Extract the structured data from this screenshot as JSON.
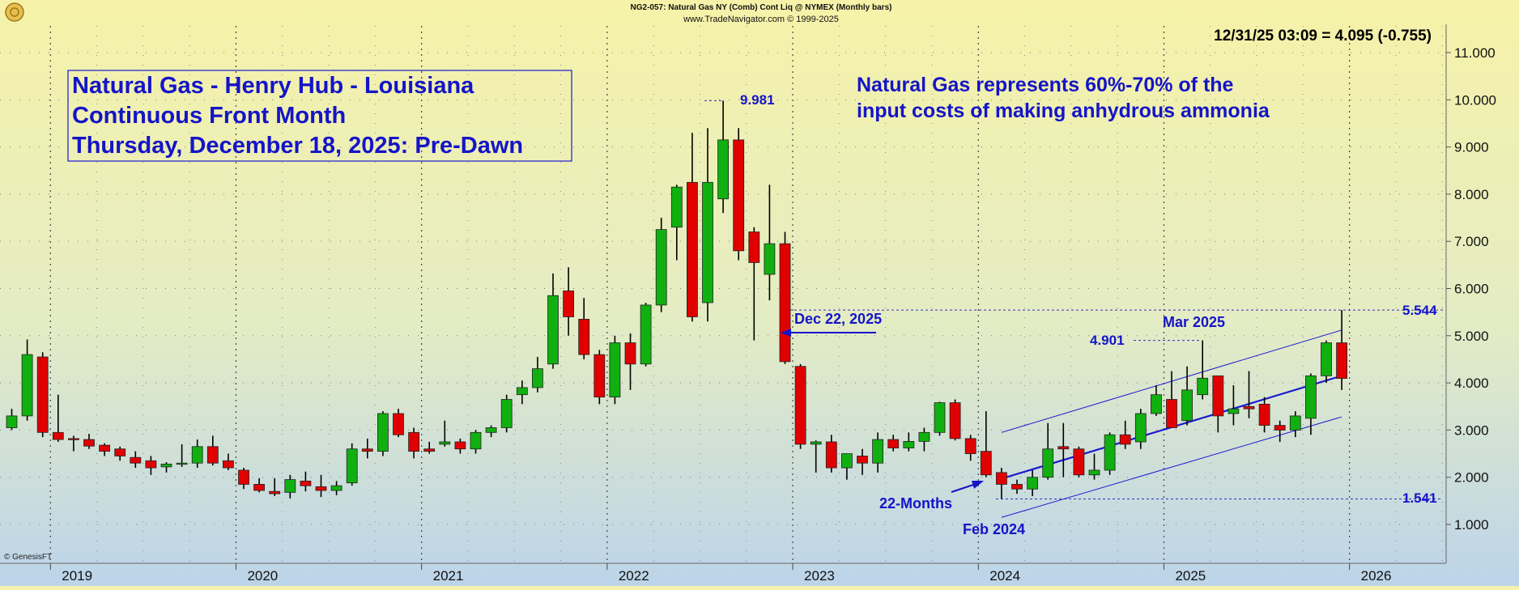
{
  "header": {
    "line1": "NG2-057:  Natural Gas NY (Comb) Cont Liq @ NYMEX  (Monthly bars)",
    "line2": "www.TradeNavigator.com © 1999-2025"
  },
  "quote": "12/31/25 03:09 = 4.095 (-0.755)",
  "title_box": {
    "line1": "Natural Gas - Henry Hub - Louisiana",
    "line2": "Continuous Front Month",
    "line3": "Thursday, December 18, 2025: Pre-Dawn"
  },
  "note": {
    "line1": "Natural Gas represents 60%-70% of the",
    "line2": "input costs of making anhydrous ammonia"
  },
  "annotations": {
    "high_label": "9.981",
    "dec22": "Dec 22, 2025",
    "mar2025": "Mar 2025",
    "val_4901": "4.901",
    "val_5544": "5.544",
    "val_1541": "1.541",
    "months22": "22-Months",
    "feb2024": "Feb 2024"
  },
  "watermark": "© GenesisFT",
  "colors": {
    "up": "#10b010",
    "down": "#e00000",
    "annotation": "#1414c8",
    "bg_top": "#f6f2a8",
    "bg_bottom": "#bcd4ea"
  },
  "chart_data": {
    "type": "candlestick",
    "title": "Natural Gas NY (Comb) Cont Liq @ NYMEX (Monthly bars)",
    "ylim": [
      0.5,
      11.5
    ],
    "y_ticks": [
      "1.000",
      "2.000",
      "3.000",
      "4.000",
      "5.000",
      "6.000",
      "7.000",
      "8.000",
      "9.000",
      "10.000",
      "11.000"
    ],
    "x_labels": [
      "2019",
      "2020",
      "2021",
      "2022",
      "2023",
      "2024",
      "2025",
      "2026"
    ],
    "start": "2018-10",
    "bars": [
      {
        "o": 3.05,
        "h": 3.45,
        "l": 3.0,
        "c": 3.3
      },
      {
        "o": 3.3,
        "h": 4.92,
        "l": 3.2,
        "c": 4.6
      },
      {
        "o": 4.55,
        "h": 4.65,
        "l": 2.85,
        "c": 2.95
      },
      {
        "o": 2.95,
        "h": 3.75,
        "l": 2.75,
        "c": 2.8
      },
      {
        "o": 2.82,
        "h": 2.88,
        "l": 2.55,
        "c": 2.8
      },
      {
        "o": 2.8,
        "h": 2.92,
        "l": 2.6,
        "c": 2.66
      },
      {
        "o": 2.68,
        "h": 2.72,
        "l": 2.45,
        "c": 2.55
      },
      {
        "o": 2.6,
        "h": 2.65,
        "l": 2.35,
        "c": 2.45
      },
      {
        "o": 2.42,
        "h": 2.55,
        "l": 2.2,
        "c": 2.3
      },
      {
        "o": 2.35,
        "h": 2.45,
        "l": 2.05,
        "c": 2.2
      },
      {
        "o": 2.22,
        "h": 2.32,
        "l": 2.1,
        "c": 2.28
      },
      {
        "o": 2.28,
        "h": 2.7,
        "l": 2.22,
        "c": 2.3
      },
      {
        "o": 2.3,
        "h": 2.8,
        "l": 2.2,
        "c": 2.65
      },
      {
        "o": 2.65,
        "h": 2.88,
        "l": 2.25,
        "c": 2.3
      },
      {
        "o": 2.35,
        "h": 2.5,
        "l": 2.15,
        "c": 2.2
      },
      {
        "o": 2.15,
        "h": 2.2,
        "l": 1.75,
        "c": 1.85
      },
      {
        "o": 1.85,
        "h": 1.98,
        "l": 1.68,
        "c": 1.72
      },
      {
        "o": 1.7,
        "h": 1.98,
        "l": 1.6,
        "c": 1.65
      },
      {
        "o": 1.68,
        "h": 2.05,
        "l": 1.55,
        "c": 1.95
      },
      {
        "o": 1.92,
        "h": 2.12,
        "l": 1.7,
        "c": 1.82
      },
      {
        "o": 1.8,
        "h": 2.05,
        "l": 1.58,
        "c": 1.72
      },
      {
        "o": 1.72,
        "h": 1.92,
        "l": 1.62,
        "c": 1.82
      },
      {
        "o": 1.88,
        "h": 2.72,
        "l": 1.82,
        "c": 2.6
      },
      {
        "o": 2.6,
        "h": 2.82,
        "l": 2.4,
        "c": 2.55
      },
      {
        "o": 2.55,
        "h": 3.4,
        "l": 2.45,
        "c": 3.35
      },
      {
        "o": 3.35,
        "h": 3.45,
        "l": 2.85,
        "c": 2.9
      },
      {
        "o": 2.95,
        "h": 3.05,
        "l": 2.4,
        "c": 2.55
      },
      {
        "o": 2.6,
        "h": 2.75,
        "l": 2.5,
        "c": 2.55
      },
      {
        "o": 2.7,
        "h": 3.2,
        "l": 2.65,
        "c": 2.75
      },
      {
        "o": 2.75,
        "h": 2.82,
        "l": 2.5,
        "c": 2.6
      },
      {
        "o": 2.6,
        "h": 3.0,
        "l": 2.5,
        "c": 2.95
      },
      {
        "o": 2.95,
        "h": 3.1,
        "l": 2.85,
        "c": 3.05
      },
      {
        "o": 3.05,
        "h": 3.75,
        "l": 2.95,
        "c": 3.65
      },
      {
        "o": 3.75,
        "h": 4.05,
        "l": 3.55,
        "c": 3.9
      },
      {
        "o": 3.9,
        "h": 4.55,
        "l": 3.8,
        "c": 4.3
      },
      {
        "o": 4.4,
        "h": 6.32,
        "l": 4.3,
        "c": 5.85
      },
      {
        "o": 5.95,
        "h": 6.45,
        "l": 5.0,
        "c": 5.4
      },
      {
        "o": 5.35,
        "h": 5.8,
        "l": 4.5,
        "c": 4.6
      },
      {
        "o": 4.6,
        "h": 4.7,
        "l": 3.55,
        "c": 3.7
      },
      {
        "o": 3.7,
        "h": 5.0,
        "l": 3.55,
        "c": 4.85
      },
      {
        "o": 4.85,
        "h": 5.05,
        "l": 3.85,
        "c": 4.4
      },
      {
        "o": 4.4,
        "h": 5.7,
        "l": 4.35,
        "c": 5.65
      },
      {
        "o": 5.65,
        "h": 7.5,
        "l": 5.5,
        "c": 7.25
      },
      {
        "o": 7.3,
        "h": 8.2,
        "l": 6.6,
        "c": 8.15
      },
      {
        "o": 8.25,
        "h": 9.3,
        "l": 5.3,
        "c": 5.4
      },
      {
        "o": 5.7,
        "h": 9.4,
        "l": 5.3,
        "c": 8.25
      },
      {
        "o": 7.9,
        "h": 9.981,
        "l": 7.6,
        "c": 9.15
      },
      {
        "o": 9.15,
        "h": 9.4,
        "l": 6.6,
        "c": 6.8
      },
      {
        "o": 7.2,
        "h": 7.3,
        "l": 4.9,
        "c": 6.55
      },
      {
        "o": 6.3,
        "h": 8.2,
        "l": 5.75,
        "c": 6.95
      },
      {
        "o": 6.95,
        "h": 7.2,
        "l": 4.4,
        "c": 4.45
      },
      {
        "o": 4.35,
        "h": 4.4,
        "l": 2.6,
        "c": 2.7
      },
      {
        "o": 2.7,
        "h": 2.78,
        "l": 2.1,
        "c": 2.75
      },
      {
        "o": 2.75,
        "h": 2.9,
        "l": 2.1,
        "c": 2.2
      },
      {
        "o": 2.2,
        "h": 2.5,
        "l": 1.95,
        "c": 2.5
      },
      {
        "o": 2.45,
        "h": 2.6,
        "l": 2.05,
        "c": 2.3
      },
      {
        "o": 2.3,
        "h": 2.95,
        "l": 2.1,
        "c": 2.8
      },
      {
        "o": 2.8,
        "h": 2.9,
        "l": 2.55,
        "c": 2.62
      },
      {
        "o": 2.62,
        "h": 2.95,
        "l": 2.55,
        "c": 2.76
      },
      {
        "o": 2.76,
        "h": 3.05,
        "l": 2.55,
        "c": 2.95
      },
      {
        "o": 2.95,
        "h": 3.6,
        "l": 2.88,
        "c": 3.58
      },
      {
        "o": 3.58,
        "h": 3.65,
        "l": 2.78,
        "c": 2.82
      },
      {
        "o": 2.82,
        "h": 2.9,
        "l": 2.35,
        "c": 2.5
      },
      {
        "o": 2.55,
        "h": 3.4,
        "l": 2.0,
        "c": 2.05
      },
      {
        "o": 2.1,
        "h": 2.2,
        "l": 1.541,
        "c": 1.85
      },
      {
        "o": 1.85,
        "h": 1.95,
        "l": 1.65,
        "c": 1.75
      },
      {
        "o": 1.75,
        "h": 2.15,
        "l": 1.6,
        "c": 2.0
      },
      {
        "o": 2.0,
        "h": 3.15,
        "l": 1.95,
        "c": 2.6
      },
      {
        "o": 2.65,
        "h": 3.15,
        "l": 2.0,
        "c": 2.6
      },
      {
        "o": 2.6,
        "h": 2.65,
        "l": 2.0,
        "c": 2.05
      },
      {
        "o": 2.05,
        "h": 2.5,
        "l": 1.95,
        "c": 2.15
      },
      {
        "o": 2.15,
        "h": 2.95,
        "l": 2.05,
        "c": 2.9
      },
      {
        "o": 2.9,
        "h": 3.2,
        "l": 2.6,
        "c": 2.7
      },
      {
        "o": 2.75,
        "h": 3.45,
        "l": 2.6,
        "c": 3.35
      },
      {
        "o": 3.35,
        "h": 3.95,
        "l": 3.3,
        "c": 3.75
      },
      {
        "o": 3.65,
        "h": 4.25,
        "l": 3.05,
        "c": 3.05
      },
      {
        "o": 3.2,
        "h": 4.35,
        "l": 3.1,
        "c": 3.85
      },
      {
        "o": 3.75,
        "h": 4.901,
        "l": 3.65,
        "c": 4.1
      },
      {
        "o": 4.15,
        "h": 4.05,
        "l": 2.95,
        "c": 3.3
      },
      {
        "o": 3.35,
        "h": 3.95,
        "l": 3.1,
        "c": 3.45
      },
      {
        "o": 3.5,
        "h": 4.25,
        "l": 3.25,
        "c": 3.45
      },
      {
        "o": 3.55,
        "h": 3.7,
        "l": 2.95,
        "c": 3.1
      },
      {
        "o": 3.1,
        "h": 3.2,
        "l": 2.75,
        "c": 3.0
      },
      {
        "o": 3.0,
        "h": 3.4,
        "l": 2.85,
        "c": 3.3
      },
      {
        "o": 3.25,
        "h": 4.2,
        "l": 2.9,
        "c": 4.15
      },
      {
        "o": 4.15,
        "h": 4.9,
        "l": 4.0,
        "c": 4.85
      },
      {
        "o": 4.85,
        "h": 5.544,
        "l": 3.85,
        "c": 4.095
      }
    ]
  }
}
